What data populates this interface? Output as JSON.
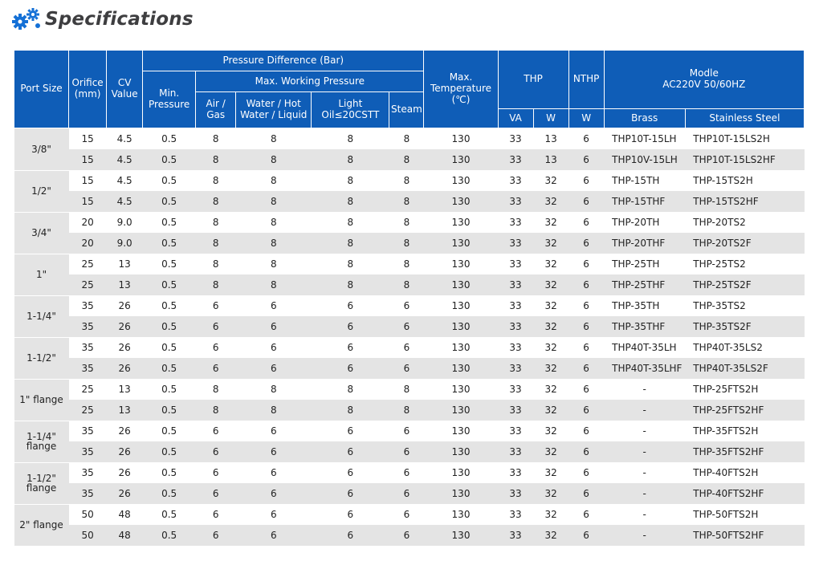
{
  "page": {
    "title": "Specifications",
    "icon": "gears-icon",
    "colors": {
      "header_bg": "#0f5db7",
      "row_alt": "#e4e4e4",
      "title": "#3e3e40"
    }
  },
  "headers": {
    "port_size": "Port Size",
    "orifice": "Orifice (mm)",
    "cv_value": "CV Value",
    "pressure_difference": "Pressure Difference (Bar)",
    "min_pressure": "Min. Pressure",
    "max_working_pressure": "Max. Working Pressure",
    "air_gas": "Air / Gas",
    "water": "Water / Hot Water / Liquid",
    "light_oil_top": "Light",
    "light_oil_bottom": "Oil≤20CSTT",
    "steam": "Steam",
    "max_temp": "Max. Temperature (℃)",
    "thp": "THP",
    "nthp": "NTHP",
    "modle": "Modle",
    "modle_sub": "AC220V  50/60HZ",
    "va": "VA",
    "w": "W",
    "w2": "W",
    "brass": "Brass",
    "stainless": "Stainless Steel"
  },
  "groups": [
    {
      "port": "3/8\"",
      "rows": [
        {
          "orifice": "15",
          "cv": "4.5",
          "min": "0.5",
          "air": "8",
          "water": "8",
          "oil": "8",
          "steam": "8",
          "temp": "130",
          "va": "33",
          "w": "13",
          "nthp": "6",
          "brass": "THP10T-15LH",
          "ss": "THP10T-15LS2H"
        },
        {
          "orifice": "15",
          "cv": "4.5",
          "min": "0.5",
          "air": "8",
          "water": "8",
          "oil": "8",
          "steam": "8",
          "temp": "130",
          "va": "33",
          "w": "13",
          "nthp": "6",
          "brass": "THP10V-15LH",
          "ss": "THP10T-15LS2HF"
        }
      ]
    },
    {
      "port": "1/2\"",
      "rows": [
        {
          "orifice": "15",
          "cv": "4.5",
          "min": "0.5",
          "air": "8",
          "water": "8",
          "oil": "8",
          "steam": "8",
          "temp": "130",
          "va": "33",
          "w": "32",
          "nthp": "6",
          "brass": "THP-15TH",
          "ss": "THP-15TS2H"
        },
        {
          "orifice": "15",
          "cv": "4.5",
          "min": "0.5",
          "air": "8",
          "water": "8",
          "oil": "8",
          "steam": "8",
          "temp": "130",
          "va": "33",
          "w": "32",
          "nthp": "6",
          "brass": "THP-15THF",
          "ss": "THP-15TS2HF"
        }
      ]
    },
    {
      "port": "3/4\"",
      "rows": [
        {
          "orifice": "20",
          "cv": "9.0",
          "min": "0.5",
          "air": "8",
          "water": "8",
          "oil": "8",
          "steam": "8",
          "temp": "130",
          "va": "33",
          "w": "32",
          "nthp": "6",
          "brass": "THP-20TH",
          "ss": "THP-20TS2"
        },
        {
          "orifice": "20",
          "cv": "9.0",
          "min": "0.5",
          "air": "8",
          "water": "8",
          "oil": "8",
          "steam": "8",
          "temp": "130",
          "va": "33",
          "w": "32",
          "nthp": "6",
          "brass": "THP-20THF",
          "ss": "THP-20TS2F"
        }
      ]
    },
    {
      "port": "1\"",
      "rows": [
        {
          "orifice": "25",
          "cv": "13",
          "min": "0.5",
          "air": "8",
          "water": "8",
          "oil": "8",
          "steam": "8",
          "temp": "130",
          "va": "33",
          "w": "32",
          "nthp": "6",
          "brass": "THP-25TH",
          "ss": "THP-25TS2"
        },
        {
          "orifice": "25",
          "cv": "13",
          "min": "0.5",
          "air": "8",
          "water": "8",
          "oil": "8",
          "steam": "8",
          "temp": "130",
          "va": "33",
          "w": "32",
          "nthp": "6",
          "brass": "THP-25THF",
          "ss": "THP-25TS2F"
        }
      ]
    },
    {
      "port": "1-1/4\"",
      "rows": [
        {
          "orifice": "35",
          "cv": "26",
          "min": "0.5",
          "air": "6",
          "water": "6",
          "oil": "6",
          "steam": "6",
          "temp": "130",
          "va": "33",
          "w": "32",
          "nthp": "6",
          "brass": "THP-35TH",
          "ss": "THP-35TS2"
        },
        {
          "orifice": "35",
          "cv": "26",
          "min": "0.5",
          "air": "6",
          "water": "6",
          "oil": "6",
          "steam": "6",
          "temp": "130",
          "va": "33",
          "w": "32",
          "nthp": "6",
          "brass": "THP-35THF",
          "ss": "THP-35TS2F"
        }
      ]
    },
    {
      "port": "1-1/2\"",
      "rows": [
        {
          "orifice": "35",
          "cv": "26",
          "min": "0.5",
          "air": "6",
          "water": "6",
          "oil": "6",
          "steam": "6",
          "temp": "130",
          "va": "33",
          "w": "32",
          "nthp": "6",
          "brass": "THP40T-35LH",
          "ss": "THP40T-35LS2"
        },
        {
          "orifice": "35",
          "cv": "26",
          "min": "0.5",
          "air": "6",
          "water": "6",
          "oil": "6",
          "steam": "6",
          "temp": "130",
          "va": "33",
          "w": "32",
          "nthp": "6",
          "brass": "THP40T-35LHF",
          "ss": "THP40T-35LS2F"
        }
      ]
    },
    {
      "port": "1\" flange",
      "rows": [
        {
          "orifice": "25",
          "cv": "13",
          "min": "0.5",
          "air": "8",
          "water": "8",
          "oil": "8",
          "steam": "8",
          "temp": "130",
          "va": "33",
          "w": "32",
          "nthp": "6",
          "brass": "-",
          "ss": "THP-25FTS2H"
        },
        {
          "orifice": "25",
          "cv": "13",
          "min": "0.5",
          "air": "8",
          "water": "8",
          "oil": "8",
          "steam": "8",
          "temp": "130",
          "va": "33",
          "w": "32",
          "nthp": "6",
          "brass": "-",
          "ss": "THP-25FTS2HF"
        }
      ]
    },
    {
      "port": "1-1/4\" flange",
      "rows": [
        {
          "orifice": "35",
          "cv": "26",
          "min": "0.5",
          "air": "6",
          "water": "6",
          "oil": "6",
          "steam": "6",
          "temp": "130",
          "va": "33",
          "w": "32",
          "nthp": "6",
          "brass": "-",
          "ss": "THP-35FTS2H"
        },
        {
          "orifice": "35",
          "cv": "26",
          "min": "0.5",
          "air": "6",
          "water": "6",
          "oil": "6",
          "steam": "6",
          "temp": "130",
          "va": "33",
          "w": "32",
          "nthp": "6",
          "brass": "-",
          "ss": "THP-35FTS2HF"
        }
      ]
    },
    {
      "port": "1-1/2\" flange",
      "rows": [
        {
          "orifice": "35",
          "cv": "26",
          "min": "0.5",
          "air": "6",
          "water": "6",
          "oil": "6",
          "steam": "6",
          "temp": "130",
          "va": "33",
          "w": "32",
          "nthp": "6",
          "brass": "-",
          "ss": "THP-40FTS2H"
        },
        {
          "orifice": "35",
          "cv": "26",
          "min": "0.5",
          "air": "6",
          "water": "6",
          "oil": "6",
          "steam": "6",
          "temp": "130",
          "va": "33",
          "w": "32",
          "nthp": "6",
          "brass": "-",
          "ss": "THP-40FTS2HF"
        }
      ]
    },
    {
      "port": "2\" flange",
      "rows": [
        {
          "orifice": "50",
          "cv": "48",
          "min": "0.5",
          "air": "6",
          "water": "6",
          "oil": "6",
          "steam": "6",
          "temp": "130",
          "va": "33",
          "w": "32",
          "nthp": "6",
          "brass": "-",
          "ss": "THP-50FTS2H"
        },
        {
          "orifice": "50",
          "cv": "48",
          "min": "0.5",
          "air": "6",
          "water": "6",
          "oil": "6",
          "steam": "6",
          "temp": "130",
          "va": "33",
          "w": "32",
          "nthp": "6",
          "brass": "-",
          "ss": "THP-50FTS2HF"
        }
      ]
    }
  ]
}
